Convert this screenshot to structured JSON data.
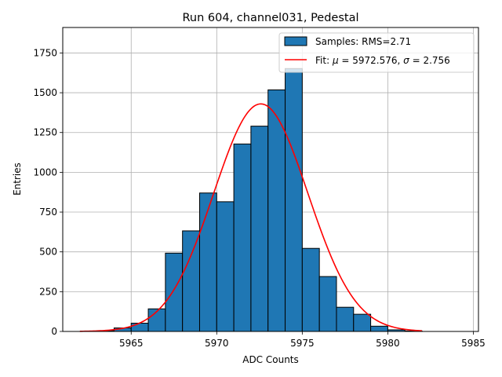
{
  "chart_data": {
    "type": "bar",
    "title": "Run 604, channel031, Pedestal",
    "xlabel": "ADC Counts",
    "ylabel": "Entries",
    "xlim": [
      5961,
      5985.3
    ],
    "ylim": [
      0,
      1910
    ],
    "x_ticks": [
      5965,
      5970,
      5975,
      5980,
      5985
    ],
    "y_ticks": [
      0,
      250,
      500,
      750,
      1000,
      1250,
      1500,
      1750
    ],
    "grid": true,
    "legend_position": "top-right",
    "histogram": {
      "name": "Samples: RMS=2.71",
      "color": "#1f77b4",
      "edge_color": "#000000",
      "bins": [
        {
          "x0": 5963.0,
          "x1": 5964.0,
          "count": 5
        },
        {
          "x0": 5964.0,
          "x1": 5965.0,
          "count": 22
        },
        {
          "x0": 5965.0,
          "x1": 5966.0,
          "count": 52
        },
        {
          "x0": 5966.0,
          "x1": 5967.0,
          "count": 142
        },
        {
          "x0": 5967.0,
          "x1": 5968.0,
          "count": 492
        },
        {
          "x0": 5968.0,
          "x1": 5969.0,
          "count": 632
        },
        {
          "x0": 5969.0,
          "x1": 5970.0,
          "count": 870
        },
        {
          "x0": 5970.0,
          "x1": 5971.0,
          "count": 815
        },
        {
          "x0": 5971.0,
          "x1": 5972.0,
          "count": 1178
        },
        {
          "x0": 5972.0,
          "x1": 5973.0,
          "count": 1290
        },
        {
          "x0": 5973.0,
          "x1": 5974.0,
          "count": 1518
        },
        {
          "x0": 5974.0,
          "x1": 5975.0,
          "count": 1652
        },
        {
          "x0": 5975.0,
          "x1": 5976.0,
          "count": 522
        },
        {
          "x0": 5976.0,
          "x1": 5977.0,
          "count": 345
        },
        {
          "x0": 5977.0,
          "x1": 5978.0,
          "count": 152
        },
        {
          "x0": 5978.0,
          "x1": 5979.0,
          "count": 108
        },
        {
          "x0": 5979.0,
          "x1": 5980.0,
          "count": 33
        },
        {
          "x0": 5980.0,
          "x1": 5981.0,
          "count": 10
        },
        {
          "x0": 5981.0,
          "x1": 5982.0,
          "count": 3
        }
      ]
    },
    "fit": {
      "name": "Fit: μ = 5972.576, σ = 2.756",
      "legend_prefix": "Fit: ",
      "mu_symbol": "μ",
      "mu_text": " = 5972.576, ",
      "sigma_symbol": "σ",
      "sigma_text": " = 2.756",
      "color": "#ff0000",
      "mu": 5972.576,
      "sigma": 2.756,
      "amplitude": 1430,
      "x_range": [
        5962.0,
        5982.0
      ]
    }
  }
}
